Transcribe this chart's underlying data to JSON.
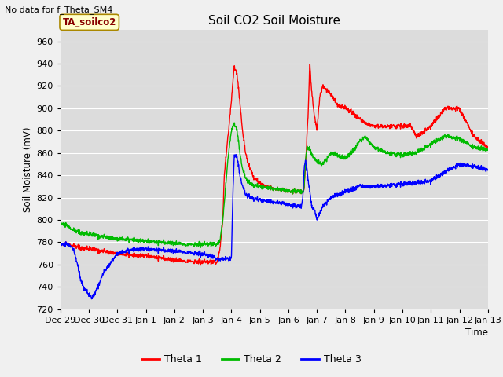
{
  "title": "Soil CO2 Soil Moisture",
  "no_data_label": "No data for f_Theta_SM4",
  "subplot_label": "TA_soilco2",
  "ylabel": "Soil Moisture (mV)",
  "xlabel": "Time",
  "ylim": [
    720,
    970
  ],
  "ylim_ticks": [
    720,
    740,
    760,
    780,
    800,
    820,
    840,
    860,
    880,
    900,
    920,
    940,
    960
  ],
  "background_color": "#dcdcdc",
  "grid_color": "#ffffff",
  "legend": [
    "Theta 1",
    "Theta 2",
    "Theta 3"
  ],
  "legend_colors": [
    "#ff0000",
    "#00bb00",
    "#0000ff"
  ],
  "x_tick_labels": [
    "Dec 29",
    "Dec 30",
    "Dec 31",
    "Jan 1",
    "Jan 2",
    "Jan 3",
    "Jan 4",
    "Jan 5",
    "Jan 6",
    "Jan 7",
    "Jan 8",
    "Jan 9",
    "Jan 10",
    "Jan 11",
    "Jan 12",
    "Jan 13"
  ]
}
